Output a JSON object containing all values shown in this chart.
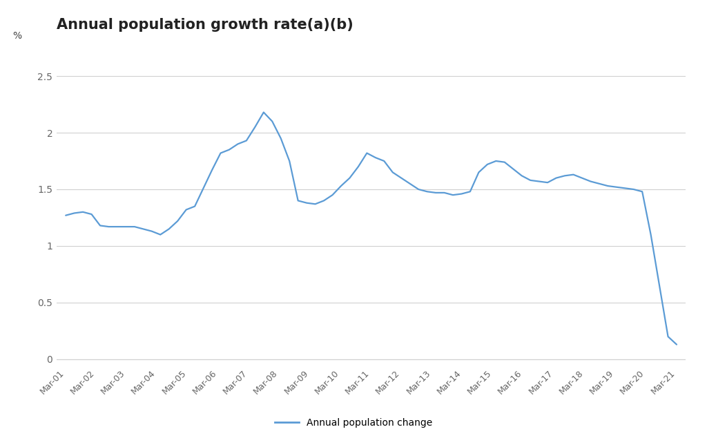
{
  "title": "Annual population growth rate(a)(b)",
  "ylabel": "%",
  "legend_label": "Annual population change",
  "line_color": "#5B9BD5",
  "background_color": "#ffffff",
  "grid_color": "#d0d0d0",
  "ylim": [
    -0.05,
    2.7
  ],
  "yticks": [
    0,
    0.5,
    1,
    1.5,
    2,
    2.5
  ],
  "x_labels": [
    "Mar-01",
    "Mar-02",
    "Mar-03",
    "Mar-04",
    "Mar-05",
    "Mar-06",
    "Mar-07",
    "Mar-08",
    "Mar-09",
    "Mar-10",
    "Mar-11",
    "Mar-12",
    "Mar-13",
    "Mar-14",
    "Mar-15",
    "Mar-16",
    "Mar-17",
    "Mar-18",
    "Mar-19",
    "Mar-20",
    "Mar-21"
  ],
  "values": [
    1.27,
    1.29,
    1.3,
    1.28,
    1.18,
    1.17,
    1.17,
    1.17,
    1.17,
    1.15,
    1.13,
    1.1,
    1.15,
    1.22,
    1.32,
    1.35,
    1.51,
    1.67,
    1.82,
    1.85,
    1.9,
    1.93,
    2.05,
    2.18,
    2.1,
    1.95,
    1.75,
    1.4,
    1.38,
    1.37,
    1.4,
    1.45,
    1.53,
    1.6,
    1.7,
    1.82,
    1.78,
    1.75,
    1.65,
    1.6,
    1.55,
    1.5,
    1.48,
    1.47,
    1.47,
    1.45,
    1.46,
    1.48,
    1.65,
    1.72,
    1.75,
    1.74,
    1.68,
    1.62,
    1.58,
    1.57,
    1.56,
    1.6,
    1.62,
    1.63,
    1.6,
    1.57,
    1.55,
    1.53,
    1.52,
    1.51,
    1.5,
    1.48,
    1.1,
    0.65,
    0.2,
    0.13
  ],
  "title_fontsize": 15,
  "tick_fontsize": 9,
  "ytick_fontsize": 10
}
